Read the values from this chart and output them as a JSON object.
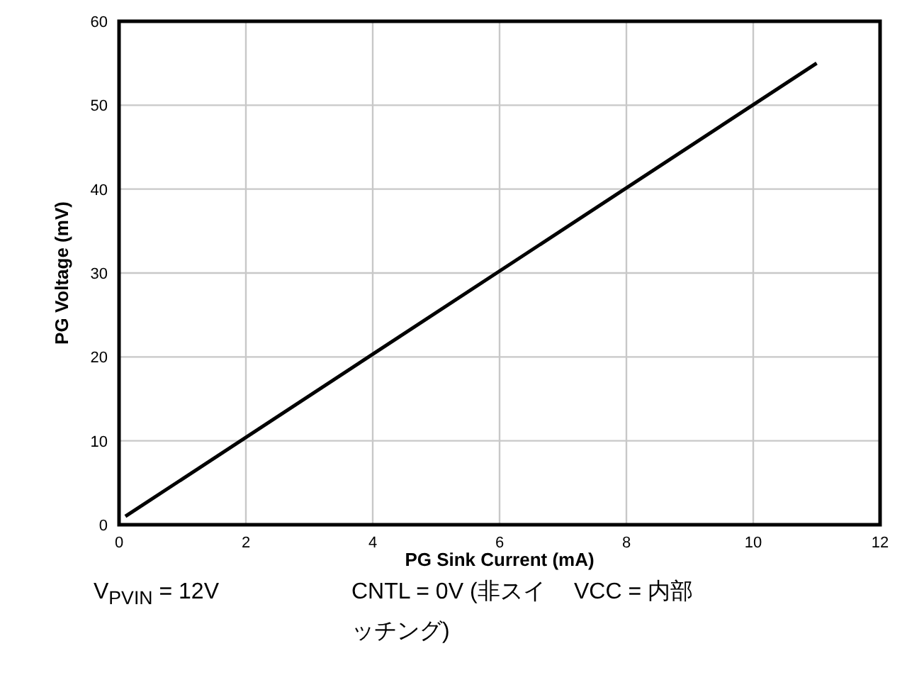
{
  "chart_data": {
    "type": "line",
    "xlabel": "PG Sink Current (mA)",
    "ylabel": "PG Voltage (mV)",
    "x": [
      0.1,
      11
    ],
    "series": [
      {
        "color": "#000000",
        "values": [
          1,
          55
        ]
      }
    ],
    "xlim": [
      0,
      12
    ],
    "xticks": [
      0,
      2,
      4,
      6,
      8,
      10,
      12
    ],
    "ylim": [
      0,
      60
    ],
    "yticks": [
      0,
      10,
      20,
      30,
      40,
      50,
      60
    ],
    "grid": true,
    "marker": "none",
    "line_style": "solid",
    "annotations": [
      "V$_{PVIN}$ = 12V",
      "CNTL = 0V (非スイッチング)",
      "VCC = 内部"
    ]
  }
}
